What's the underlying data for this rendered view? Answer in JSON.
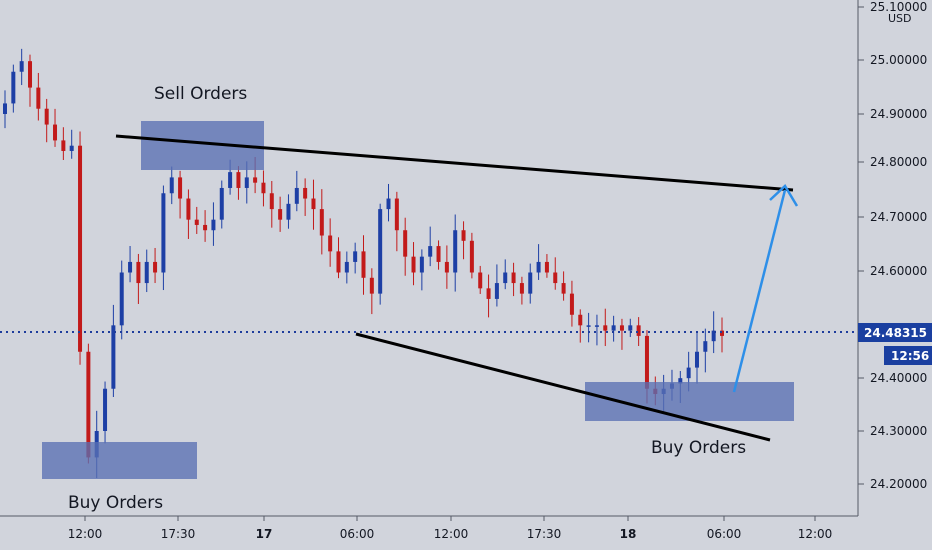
{
  "chart_data": {
    "type": "candlestick",
    "symbol_currency": "USD",
    "x_axis_labels": [
      "12:00",
      "17:30",
      "17",
      "06:00",
      "12:00",
      "17:30",
      "18",
      "06:00",
      "12:00"
    ],
    "y_axis_labels": [
      "25.10000",
      "25.00000",
      "24.90000",
      "24.80000",
      "24.70000",
      "24.60000",
      "24.40000",
      "24.30000",
      "24.20000"
    ],
    "ylim": [
      24.14,
      25.13
    ],
    "current_price": "24.48315",
    "current_price_value": 24.48315,
    "countdown": "12:56",
    "annotations": {
      "sell_orders": "Sell Orders",
      "buy_orders_left": "Buy Orders",
      "buy_orders_right": "Buy Orders"
    },
    "zones": [
      {
        "name": "sell-orders-zone",
        "price_low": 24.79,
        "price_high": 24.88
      },
      {
        "name": "buy-orders-zone-left",
        "price_low": 24.21,
        "price_high": 24.27
      },
      {
        "name": "buy-orders-zone-right",
        "price_low": 24.32,
        "price_high": 24.39
      }
    ],
    "trendlines": [
      {
        "name": "upper-trendline",
        "start_price": 24.85,
        "end_price": 24.755
      },
      {
        "name": "lower-trendline",
        "start_price": 24.47,
        "end_price": 24.28
      }
    ],
    "projection": {
      "from_price": 24.37,
      "to_price": 24.76
    },
    "candles_close_path": [
      24.92,
      24.98,
      25.0,
      24.95,
      24.91,
      24.88,
      24.85,
      24.83,
      24.84,
      24.45,
      24.25,
      24.3,
      24.38,
      24.5,
      24.6,
      24.62,
      24.58,
      24.62,
      24.6,
      24.75,
      24.78,
      24.74,
      24.7,
      24.69,
      24.68,
      24.7,
      24.76,
      24.79,
      24.76,
      24.78,
      24.77,
      24.75,
      24.72,
      24.7,
      24.73,
      24.76,
      24.74,
      24.72,
      24.67,
      24.64,
      24.6,
      24.62,
      24.64,
      24.59,
      24.56,
      24.72,
      24.74,
      24.68,
      24.63,
      24.6,
      24.63,
      24.65,
      24.62,
      24.6,
      24.68,
      24.66,
      24.6,
      24.57,
      24.55,
      24.58,
      24.6,
      24.58,
      24.56,
      24.6,
      24.62,
      24.6,
      24.58,
      24.56,
      24.52,
      24.5,
      24.5,
      24.5,
      24.49,
      24.5,
      24.49,
      24.5,
      24.48,
      24.38,
      24.37,
      24.38,
      24.39,
      24.4,
      24.42,
      24.45,
      24.47,
      24.49,
      24.48
    ]
  }
}
